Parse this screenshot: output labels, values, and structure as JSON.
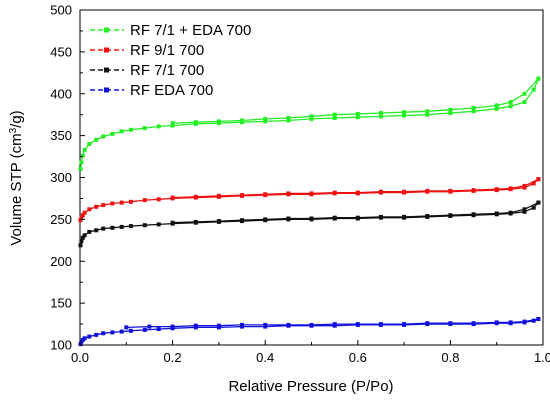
{
  "chart_data": {
    "type": "line",
    "title": "",
    "xlabel": "Relative Pressure (P/Po)",
    "ylabel_main": "Volume STP (cm",
    "ylabel_sup": "3",
    "ylabel_tail": "/g)",
    "xlim": [
      0.0,
      1.0
    ],
    "ylim": [
      100,
      500
    ],
    "xticks": [
      "0.0",
      "0.2",
      "0.4",
      "0.6",
      "0.8",
      "1.0"
    ],
    "yticks": [
      "100",
      "150",
      "200",
      "250",
      "300",
      "350",
      "400",
      "450",
      "500"
    ],
    "grid": false,
    "legend_position": "top-left",
    "series": [
      {
        "name": "RF 7/1 + EDA 700",
        "color": "#22ee22",
        "adsorption": {
          "x": [
            0.001,
            0.003,
            0.006,
            0.01,
            0.02,
            0.035,
            0.05,
            0.07,
            0.09,
            0.11,
            0.14,
            0.17,
            0.2,
            0.25,
            0.3,
            0.35,
            0.4,
            0.45,
            0.5,
            0.55,
            0.6,
            0.65,
            0.7,
            0.75,
            0.8,
            0.85,
            0.9,
            0.93,
            0.96,
            0.98,
            0.99
          ],
          "y": [
            310,
            318,
            326,
            333,
            340,
            345,
            349,
            352,
            355,
            357,
            359,
            361,
            362,
            364,
            365,
            366,
            367,
            368,
            370,
            371,
            372,
            373,
            374,
            375,
            377,
            379,
            382,
            385,
            390,
            405,
            418
          ]
        },
        "desorption": {
          "x": [
            0.99,
            0.96,
            0.93,
            0.9,
            0.85,
            0.8,
            0.75,
            0.7,
            0.65,
            0.6,
            0.55,
            0.5,
            0.45,
            0.4,
            0.35,
            0.3,
            0.25,
            0.2
          ],
          "y": [
            418,
            400,
            390,
            386,
            383,
            381,
            379,
            378,
            377,
            376,
            375,
            373,
            371,
            370,
            368,
            367,
            366,
            365
          ]
        }
      },
      {
        "name": "RF 9/1 700",
        "color": "#ee1111",
        "adsorption": {
          "x": [
            0.001,
            0.003,
            0.006,
            0.01,
            0.02,
            0.035,
            0.05,
            0.07,
            0.09,
            0.11,
            0.14,
            0.17,
            0.2,
            0.25,
            0.3,
            0.35,
            0.4,
            0.45,
            0.5,
            0.55,
            0.6,
            0.65,
            0.7,
            0.75,
            0.8,
            0.85,
            0.9,
            0.93,
            0.96,
            0.98,
            0.99
          ],
          "y": [
            249,
            252,
            255,
            258,
            262,
            265,
            267,
            269,
            270,
            271,
            273,
            274,
            275,
            276,
            277,
            278,
            279,
            280,
            280,
            281,
            281,
            282,
            282,
            283,
            283,
            284,
            285,
            286,
            288,
            293,
            298
          ]
        },
        "desorption": {
          "x": [
            0.99,
            0.96,
            0.93,
            0.9,
            0.85,
            0.8,
            0.75,
            0.7,
            0.65,
            0.6,
            0.55,
            0.5,
            0.45,
            0.4,
            0.35,
            0.3,
            0.25,
            0.2
          ],
          "y": [
            298,
            290,
            287,
            286,
            285,
            284,
            284,
            283,
            283,
            282,
            282,
            281,
            281,
            280,
            279,
            278,
            277,
            276
          ]
        }
      },
      {
        "name": "RF 7/1 700",
        "color": "#111111",
        "adsorption": {
          "x": [
            0.001,
            0.003,
            0.006,
            0.01,
            0.02,
            0.035,
            0.05,
            0.07,
            0.09,
            0.11,
            0.14,
            0.17,
            0.2,
            0.25,
            0.3,
            0.35,
            0.4,
            0.45,
            0.5,
            0.55,
            0.6,
            0.65,
            0.7,
            0.75,
            0.8,
            0.85,
            0.9,
            0.93,
            0.96,
            0.98,
            0.99
          ],
          "y": [
            219,
            224,
            228,
            231,
            235,
            237,
            239,
            240,
            241,
            242,
            243,
            244,
            245,
            246,
            247,
            248,
            249,
            250,
            250,
            251,
            251,
            252,
            252,
            253,
            254,
            255,
            256,
            257,
            259,
            264,
            270
          ]
        },
        "desorption": {
          "x": [
            0.99,
            0.96,
            0.93,
            0.9,
            0.85,
            0.8,
            0.75,
            0.7,
            0.65,
            0.6,
            0.55,
            0.5,
            0.45,
            0.4,
            0.35,
            0.3,
            0.25,
            0.2
          ],
          "y": [
            270,
            262,
            258,
            257,
            256,
            255,
            254,
            253,
            253,
            252,
            252,
            251,
            251,
            250,
            249,
            248,
            247,
            246
          ]
        }
      },
      {
        "name": "RF EDA 700",
        "color": "#1111dd",
        "adsorption": {
          "x": [
            0.001,
            0.003,
            0.006,
            0.01,
            0.02,
            0.035,
            0.05,
            0.07,
            0.09,
            0.11,
            0.14,
            0.17,
            0.2,
            0.25,
            0.3,
            0.35,
            0.4,
            0.45,
            0.5,
            0.55,
            0.6,
            0.65,
            0.7,
            0.75,
            0.8,
            0.85,
            0.9,
            0.93,
            0.96,
            0.98,
            0.99
          ],
          "y": [
            101,
            104,
            106,
            108,
            110,
            112,
            114,
            115,
            116,
            117,
            118,
            119,
            120,
            121,
            121,
            122,
            122,
            123,
            123,
            123,
            124,
            124,
            124,
            125,
            125,
            125,
            126,
            126,
            127,
            129,
            131
          ]
        },
        "desorption": {
          "x": [
            0.99,
            0.96,
            0.93,
            0.9,
            0.85,
            0.8,
            0.75,
            0.7,
            0.65,
            0.6,
            0.55,
            0.5,
            0.45,
            0.4,
            0.35,
            0.3,
            0.25,
            0.2,
            0.15,
            0.1
          ],
          "y": [
            131,
            128,
            127,
            127,
            126,
            126,
            126,
            125,
            125,
            125,
            125,
            124,
            124,
            124,
            124,
            123,
            123,
            122,
            122,
            121
          ]
        }
      }
    ]
  }
}
